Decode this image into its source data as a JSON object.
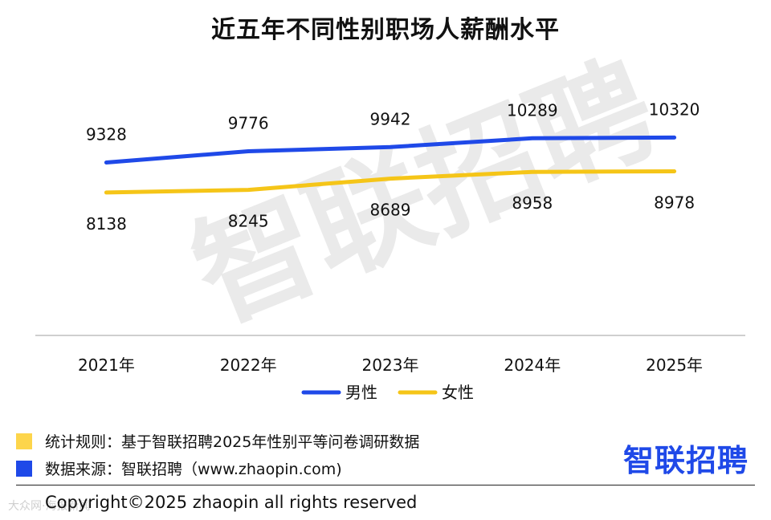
{
  "title": "近五年不同性别职场人薪酬水平",
  "watermark": "智联招聘",
  "chart_data": {
    "type": "line",
    "title": "近五年不同性别职场人薪酬水平",
    "categories": [
      "2021年",
      "2022年",
      "2023年",
      "2024年",
      "2025年"
    ],
    "series": [
      {
        "name": "男性",
        "color": "#1f49e8",
        "values": [
          9328,
          9776,
          9942,
          10289,
          10320
        ]
      },
      {
        "name": "女性",
        "color": "#f5c518",
        "values": [
          8138,
          8245,
          8689,
          8958,
          8978
        ]
      }
    ],
    "ylim": [
      0,
      11000
    ],
    "grid": false,
    "legend": "bottom-center",
    "xlabel": "",
    "ylabel": ""
  },
  "footer": {
    "rule_label": "统计规则：基于智联招聘2025年性别平等问卷调研数据",
    "rule_color": "#fdd54b",
    "source_label": "数据来源：智联招聘（www.zhaopin.com)",
    "source_color": "#1f49e8",
    "brand": "智联招聘",
    "copyright": "Copyright©2025 zhaopin all rights reserved",
    "corner_mark": "大众网·海报新闻"
  }
}
